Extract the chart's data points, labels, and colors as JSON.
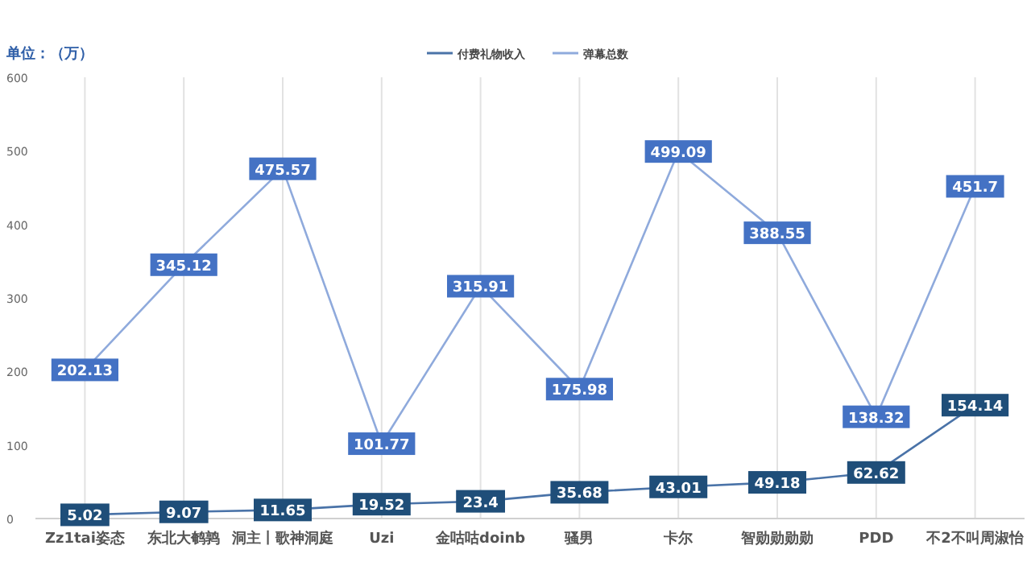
{
  "chart_data": {
    "type": "line",
    "ylabel": "单位：（万）",
    "categories": [
      "Zz1tai姿态",
      "东北大鹌鹑",
      "洞主丨歌神洞庭",
      "Uzi",
      "金咕咕doinb",
      "骚男",
      "卡尔",
      "智勋勋勋勋",
      "PDD",
      "不2不叫周淑怡"
    ],
    "series": [
      {
        "name": "付费礼物收入",
        "color": "#4a73a8",
        "values": [
          5.02,
          9.07,
          11.65,
          19.52,
          23.4,
          35.68,
          43.01,
          49.18,
          62.62,
          154.14
        ]
      },
      {
        "name": "弹幕总数",
        "color": "#8faadc",
        "values": [
          202.13,
          345.12,
          475.57,
          101.77,
          315.91,
          175.98,
          499.09,
          388.55,
          138.32,
          451.7
        ]
      }
    ],
    "ylim": [
      0,
      600
    ],
    "yticks": [
      0,
      100,
      200,
      300,
      400,
      500,
      600
    ],
    "grid": "x",
    "legend": "top",
    "data_labels": true,
    "marker": "square",
    "line_style": "solid"
  }
}
